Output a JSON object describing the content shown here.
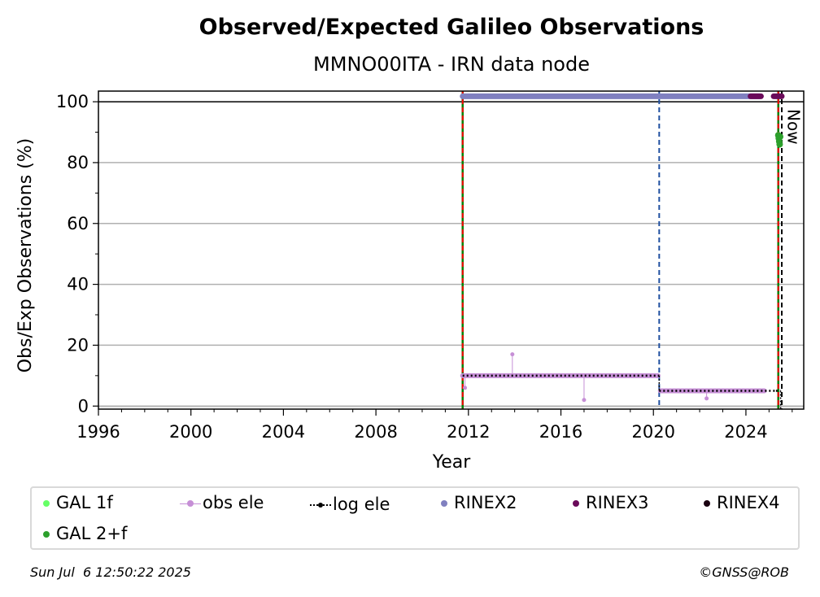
{
  "chart_data": {
    "type": "scatter",
    "title": "Observed/Expected Galileo Observations",
    "subtitle": "MMNO00ITA - IRN data node",
    "xlabel": "Year",
    "ylabel": "Obs/Exp Observations (%)",
    "xlim": [
      1996,
      2026.5
    ],
    "ylim": [
      -1,
      103.5
    ],
    "x_ticks": [
      "1996",
      "2000",
      "2004",
      "2008",
      "2012",
      "2016",
      "2020",
      "2024"
    ],
    "y_ticks": [
      "0",
      "20",
      "40",
      "60",
      "80",
      "100"
    ],
    "grid": "horizontal",
    "now_label": "Now",
    "now_year": 2025.5,
    "vertical_lines": [
      {
        "x": 2011.75,
        "style": "solid",
        "color": "#008000"
      },
      {
        "x": 2011.75,
        "style": "dashed",
        "color": "#ff0000"
      },
      {
        "x": 2020.25,
        "style": "dashed",
        "color": "#1f4fa0"
      },
      {
        "x": 2025.4,
        "style": "solid",
        "color": "#008000"
      },
      {
        "x": 2025.4,
        "style": "dashed",
        "color": "#ff0000"
      },
      {
        "x": 2025.55,
        "style": "dashed",
        "color": "#000000"
      }
    ],
    "series": [
      {
        "name": "GAL 1f",
        "color": "#66ff66",
        "marker": "dot",
        "points": []
      },
      {
        "name": "GAL 2+f",
        "color": "#2ca02c",
        "marker": "dot",
        "points": [
          [
            2025.4,
            89
          ],
          [
            2025.42,
            88
          ],
          [
            2025.44,
            87
          ],
          [
            2025.46,
            86
          ],
          [
            2025.48,
            88.5
          ]
        ]
      },
      {
        "name": "obs ele",
        "color": "#c68fd6",
        "marker": "dot-line",
        "segments": [
          {
            "x_start": 2011.75,
            "x_end": 2020.2,
            "y": 10
          },
          {
            "x_start": 2020.3,
            "x_end": 2024.8,
            "y": 5
          }
        ],
        "outliers": [
          [
            2011.85,
            6
          ],
          [
            2013.9,
            17
          ],
          [
            2017.0,
            2
          ],
          [
            2022.3,
            2.5
          ]
        ]
      },
      {
        "name": "log ele",
        "color": "#000000",
        "marker": "dotted-line",
        "segments": [
          {
            "x_start": 2011.75,
            "x_end": 2020.25,
            "y": 10
          },
          {
            "x_start": 2020.25,
            "x_end": 2025.3,
            "y": 5
          },
          {
            "x_start": 2025.3,
            "x_end": 2025.5,
            "y": 5
          }
        ]
      },
      {
        "name": "RINEX2",
        "color": "#8080c0",
        "marker": "dot",
        "segments": [
          {
            "x_start": 2011.75,
            "x_end": 2024.6,
            "y": 101.8
          }
        ]
      },
      {
        "name": "RINEX3",
        "color": "#6a0a5a",
        "marker": "dot",
        "segments": [
          {
            "x_start": 2024.2,
            "x_end": 2024.65,
            "y": 101.8
          },
          {
            "x_start": 2025.2,
            "x_end": 2025.55,
            "y": 101.8
          }
        ]
      },
      {
        "name": "RINEX4",
        "color": "#1a0010",
        "marker": "dot",
        "points": []
      }
    ]
  },
  "legend": {
    "items": [
      {
        "label": "GAL 1f",
        "color": "#66ff66"
      },
      {
        "label": "obs ele",
        "color": "#c68fd6"
      },
      {
        "label": "log ele",
        "color": "#000000"
      },
      {
        "label": "RINEX2",
        "color": "#8080c0"
      },
      {
        "label": "RINEX3",
        "color": "#6a0a5a"
      },
      {
        "label": "RINEX4",
        "color": "#1a0010"
      },
      {
        "label": "GAL 2+f",
        "color": "#2ca02c"
      }
    ]
  },
  "footer": {
    "timestamp": "Sun Jul  6 12:50:22 2025",
    "credit": "©GNSS@ROB"
  }
}
